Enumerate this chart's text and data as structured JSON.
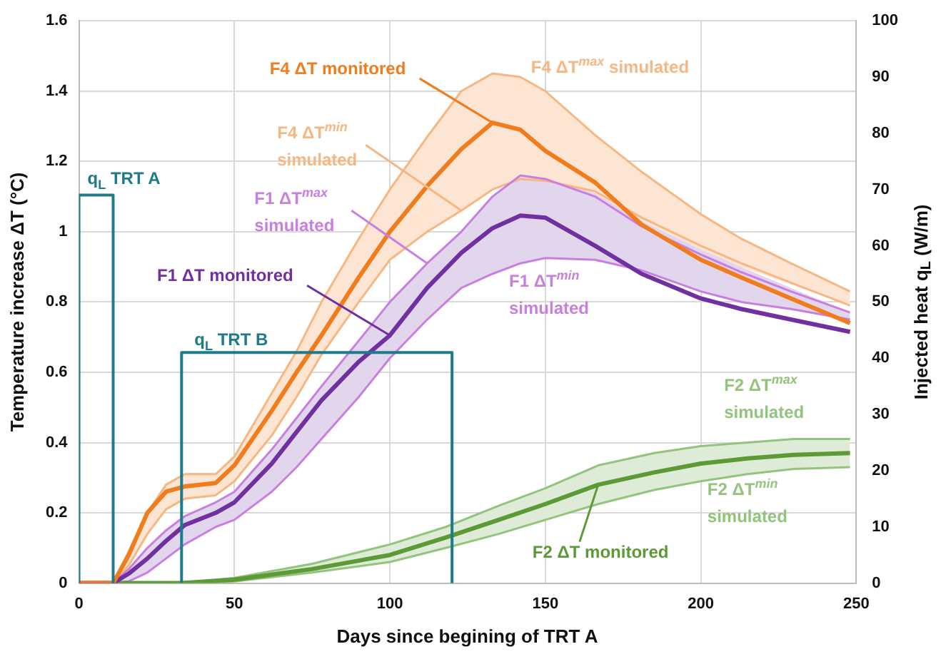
{
  "chart_data": {
    "type": "line",
    "xlabel": "Days since begining of TRT A",
    "ylabel": "Temperature increase ΔT (°C)",
    "y2label": "Injected heat q$_{L}$ (W/m)",
    "xlim": [
      0,
      250
    ],
    "xticks": [
      0,
      50,
      100,
      150,
      200,
      250
    ],
    "ylim": [
      0,
      1.6
    ],
    "yticks": [
      0,
      0.2,
      0.4,
      0.6,
      0.8,
      1,
      1.2,
      1.4,
      1.6
    ],
    "y2lim": [
      0,
      100
    ],
    "y2ticks": [
      0,
      10,
      20,
      30,
      40,
      50,
      60,
      70,
      80,
      90,
      100
    ],
    "grid": true,
    "legend": false,
    "marker": "none",
    "line_style": "solid",
    "series": [
      {
        "name": "F4 ΔT monitored",
        "color": "#f07c1e",
        "x": [
          0,
          11,
          16,
          22,
          28,
          34,
          44,
          50,
          62,
          70,
          78,
          90,
          100,
          112,
          123,
          133,
          142,
          150,
          166,
          181,
          200,
          213,
          229,
          248
        ],
        "values": [
          0,
          0,
          0.08,
          0.2,
          0.26,
          0.275,
          0.285,
          0.335,
          0.49,
          0.6,
          0.705,
          0.87,
          1.0,
          1.13,
          1.235,
          1.31,
          1.29,
          1.23,
          1.14,
          1.02,
          0.92,
          0.87,
          0.81,
          0.74
        ],
        "upper": [
          0,
          0,
          0.09,
          0.2,
          0.28,
          0.31,
          0.31,
          0.36,
          0.54,
          0.66,
          0.8,
          0.98,
          1.12,
          1.27,
          1.4,
          1.45,
          1.44,
          1.4,
          1.275,
          1.17,
          1.05,
          0.98,
          0.91,
          0.83
        ],
        "lower": [
          0,
          0,
          0.05,
          0.14,
          0.21,
          0.24,
          0.25,
          0.29,
          0.42,
          0.53,
          0.65,
          0.8,
          0.92,
          1.0,
          1.06,
          1.12,
          1.15,
          1.15,
          1.11,
          1.03,
          0.95,
          0.9,
          0.85,
          0.79
        ]
      },
      {
        "name": "F1 ΔT monitored",
        "color": "#7030a0",
        "x": [
          0,
          11,
          16,
          22,
          28,
          34,
          44,
          50,
          62,
          70,
          78,
          90,
          100,
          112,
          123,
          133,
          142,
          150,
          166,
          181,
          200,
          213,
          229,
          248
        ],
        "values": [
          0,
          0,
          0.027,
          0.07,
          0.12,
          0.165,
          0.2,
          0.23,
          0.34,
          0.43,
          0.52,
          0.63,
          0.705,
          0.84,
          0.94,
          1.01,
          1.046,
          1.04,
          0.96,
          0.88,
          0.81,
          0.78,
          0.75,
          0.715
        ],
        "upper": [
          0,
          0,
          0.04,
          0.1,
          0.15,
          0.19,
          0.23,
          0.26,
          0.38,
          0.47,
          0.56,
          0.69,
          0.8,
          0.91,
          1.0,
          1.1,
          1.155,
          1.15,
          1.11,
          1.03,
          0.95,
          0.9,
          0.84,
          0.77
        ],
        "lower": [
          0,
          0,
          0.005,
          0.03,
          0.07,
          0.11,
          0.16,
          0.18,
          0.26,
          0.33,
          0.41,
          0.53,
          0.64,
          0.75,
          0.84,
          0.88,
          0.91,
          0.925,
          0.92,
          0.89,
          0.83,
          0.8,
          0.78,
          0.75
        ]
      },
      {
        "name": "F2 ΔT monitored",
        "color": "#5b9a35",
        "x": [
          12,
          33,
          50,
          75,
          100,
          118,
          135,
          150,
          167,
          185,
          200,
          215,
          230,
          248
        ],
        "values": [
          0,
          0,
          0.01,
          0.04,
          0.08,
          0.13,
          0.18,
          0.225,
          0.28,
          0.315,
          0.34,
          0.355,
          0.365,
          0.37
        ],
        "upper": [
          0,
          0,
          0.015,
          0.055,
          0.11,
          0.16,
          0.22,
          0.27,
          0.335,
          0.37,
          0.39,
          0.4,
          0.41,
          0.41
        ],
        "lower": [
          0,
          0,
          0.005,
          0.03,
          0.06,
          0.1,
          0.14,
          0.18,
          0.225,
          0.265,
          0.29,
          0.31,
          0.325,
          0.33
        ]
      },
      {
        "name": "F4 ΔT$^{max}$ simulated",
        "color": "#f7b783",
        "x": [
          0,
          11,
          16,
          22,
          28,
          34,
          44,
          50,
          62,
          70,
          78,
          90,
          100,
          112,
          123,
          133,
          142,
          150,
          166,
          181,
          200,
          213,
          229,
          248
        ],
        "values": [
          0,
          0,
          0.09,
          0.2,
          0.28,
          0.31,
          0.31,
          0.36,
          0.54,
          0.66,
          0.8,
          0.98,
          1.12,
          1.27,
          1.4,
          1.45,
          1.44,
          1.4,
          1.275,
          1.17,
          1.05,
          0.98,
          0.91,
          0.83
        ]
      },
      {
        "name": "F4 ΔT$^{min}$ simulated",
        "color": "#f7b783",
        "x": [
          0,
          11,
          16,
          22,
          28,
          34,
          44,
          50,
          62,
          70,
          78,
          90,
          100,
          112,
          123,
          133,
          142,
          150,
          166,
          181,
          200,
          213,
          229,
          248
        ],
        "values": [
          0,
          0,
          0.05,
          0.14,
          0.21,
          0.24,
          0.25,
          0.29,
          0.42,
          0.53,
          0.65,
          0.8,
          0.92,
          1.0,
          1.06,
          1.12,
          1.15,
          1.145,
          1.115,
          1.04,
          0.96,
          0.91,
          0.855,
          0.79
        ]
      },
      {
        "name": "F1 ΔT$^{max}$ simulated",
        "color": "#c97fdf",
        "x": [
          0,
          11,
          16,
          22,
          28,
          34,
          44,
          50,
          62,
          70,
          78,
          90,
          100,
          112,
          123,
          133,
          142,
          150,
          166,
          181,
          200,
          213,
          229,
          248
        ],
        "values": [
          0,
          0,
          0.04,
          0.1,
          0.15,
          0.19,
          0.23,
          0.26,
          0.38,
          0.47,
          0.56,
          0.69,
          0.8,
          0.91,
          1.0,
          1.1,
          1.16,
          1.15,
          1.1,
          1.015,
          0.935,
          0.885,
          0.83,
          0.77
        ]
      },
      {
        "name": "F1 ΔT$^{min}$ simulated",
        "color": "#c97fdf",
        "x": [
          0,
          11,
          16,
          22,
          28,
          34,
          44,
          50,
          62,
          70,
          78,
          90,
          100,
          112,
          123,
          133,
          142,
          150,
          166,
          181,
          200,
          213,
          229,
          248
        ],
        "values": [
          0,
          0,
          0.005,
          0.03,
          0.07,
          0.11,
          0.16,
          0.18,
          0.26,
          0.33,
          0.41,
          0.53,
          0.64,
          0.75,
          0.84,
          0.88,
          0.91,
          0.925,
          0.92,
          0.89,
          0.83,
          0.8,
          0.78,
          0.75
        ]
      },
      {
        "name": "F2 ΔT$^{max}$ simulated",
        "color": "#93c47d",
        "x": [
          12,
          33,
          50,
          75,
          100,
          118,
          135,
          150,
          167,
          185,
          200,
          215,
          230,
          248
        ],
        "values": [
          0,
          0,
          0.015,
          0.055,
          0.11,
          0.16,
          0.22,
          0.27,
          0.335,
          0.37,
          0.39,
          0.4,
          0.41,
          0.41
        ]
      },
      {
        "name": "F2 ΔT$^{min}$ simulated",
        "color": "#93c47d",
        "x": [
          12,
          33,
          50,
          75,
          100,
          118,
          135,
          150,
          167,
          185,
          200,
          215,
          230,
          248
        ],
        "values": [
          0,
          0,
          0.005,
          0.03,
          0.06,
          0.1,
          0.14,
          0.18,
          0.225,
          0.265,
          0.29,
          0.31,
          0.325,
          0.33
        ]
      },
      {
        "name": "q$_{L}$ TRT A",
        "color": "#1d7b8a",
        "axis": "y2",
        "x": [
          0,
          0,
          11,
          11
        ],
        "values": [
          0,
          69,
          69,
          0
        ]
      },
      {
        "name": "q$_{L}$ TRT B",
        "color": "#1d7b8a",
        "axis": "y2",
        "x": [
          33,
          33,
          120,
          120
        ],
        "values": [
          0,
          41,
          41,
          0
        ]
      }
    ]
  }
}
